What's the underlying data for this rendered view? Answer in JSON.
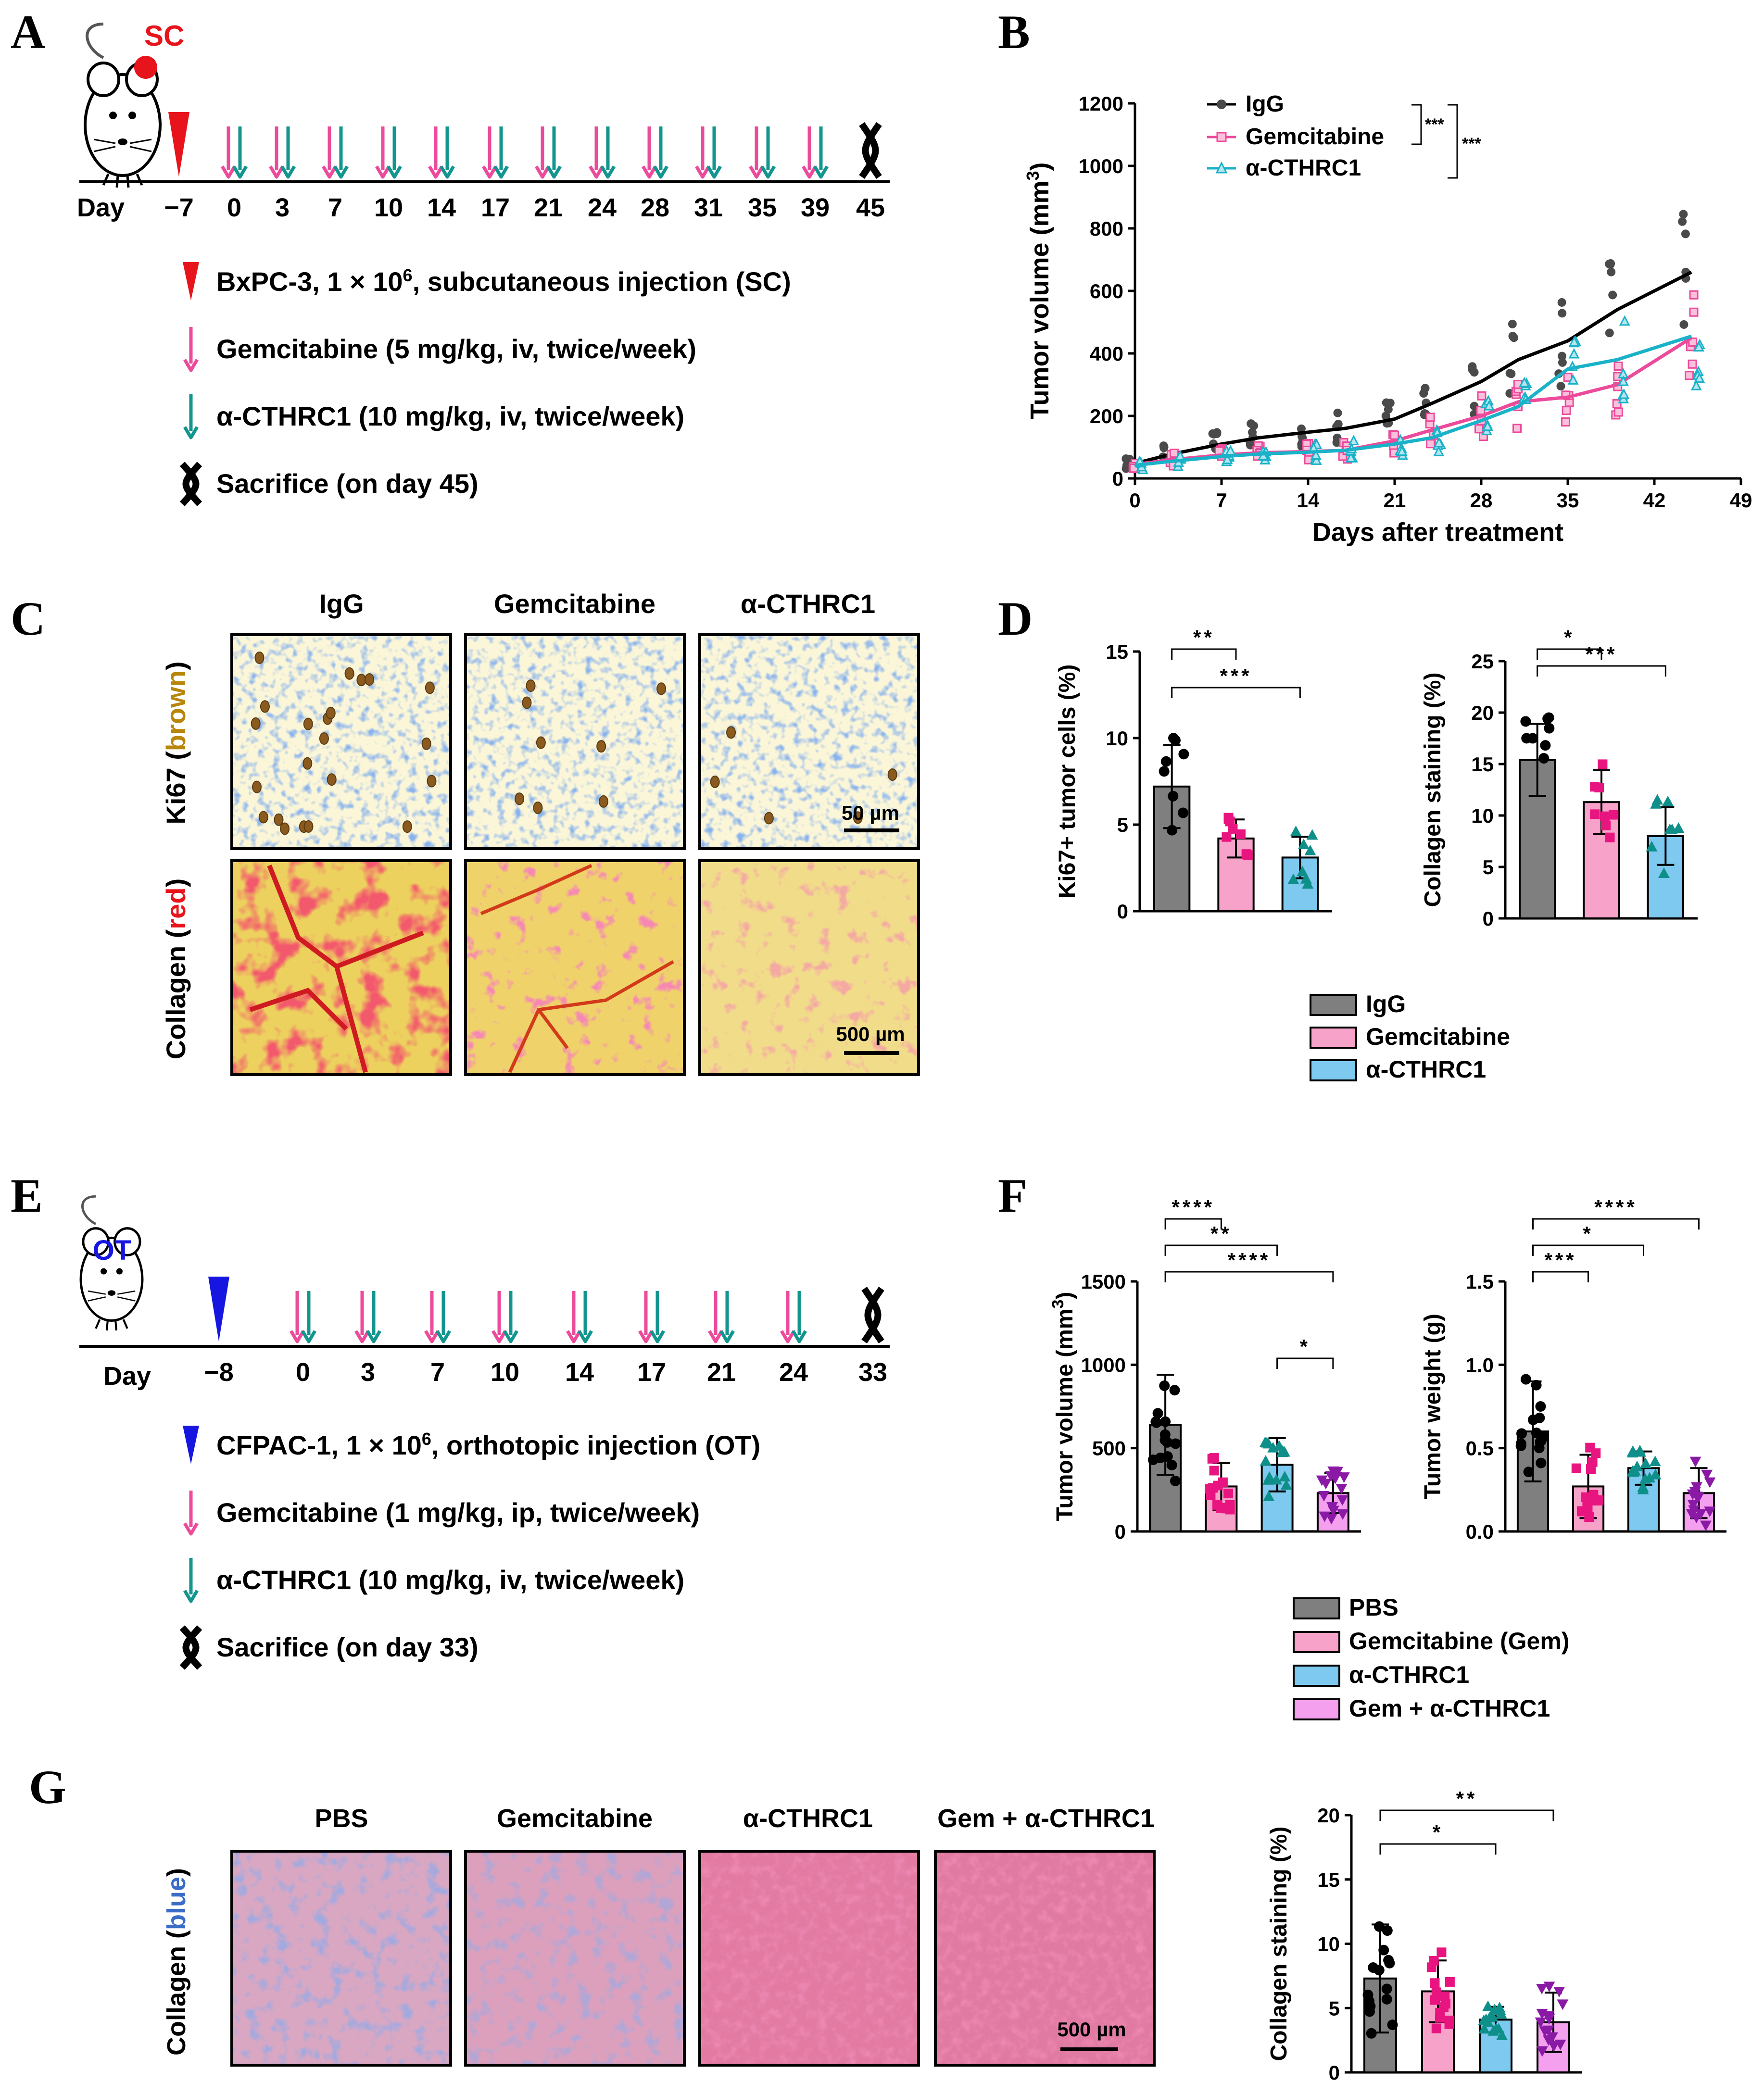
{
  "figure": {
    "panel_labels": [
      "A",
      "B",
      "C",
      "D",
      "E",
      "F",
      "G"
    ]
  },
  "panelA": {
    "mouse_tag": "SC",
    "day_label": "Day",
    "days": [
      "−7",
      "0",
      "3",
      "7",
      "10",
      "14",
      "17",
      "21",
      "24",
      "28",
      "31",
      "35",
      "39",
      "45"
    ],
    "legend": [
      {
        "pre": "BxPC-3, 1 × 10",
        "sup": "6",
        "post": ", subcutaneous injection (SC)"
      },
      {
        "pre": "Gemcitabine (5 mg/kg, iv, twice/week)",
        "sup": "",
        "post": ""
      },
      {
        "pre": "α-CTHRC1 (10 mg/kg, iv, twice/week)",
        "sup": "",
        "post": ""
      },
      {
        "pre": "Sacrifice (on day 45)",
        "sup": "",
        "post": ""
      }
    ],
    "colors": {
      "injection": "#e8141b",
      "gem": "#ec4a9a",
      "cthrc1": "#13958f",
      "sacrifice": "#000000"
    }
  },
  "panelE": {
    "mouse_tag": "OT",
    "day_label": "Day",
    "days": [
      "−8",
      "0",
      "3",
      "7",
      "10",
      "14",
      "17",
      "21",
      "24",
      "33"
    ],
    "legend": [
      {
        "pre": "CFPAC-1, 1 × 10",
        "sup": "6",
        "post": ", orthotopic injection (OT)"
      },
      {
        "pre": "Gemcitabine (1 mg/kg, ip, twice/week)",
        "sup": "",
        "post": ""
      },
      {
        "pre": "α-CTHRC1 (10 mg/kg, iv, twice/week)",
        "sup": "",
        "post": ""
      },
      {
        "pre": "Sacrifice (on day 33)",
        "sup": "",
        "post": ""
      }
    ],
    "colors": {
      "injection": "#1616e0",
      "gem": "#ec4a9a",
      "cthrc1": "#13958f",
      "sacrifice": "#000000"
    }
  },
  "chart_data": [
    {
      "id": "B",
      "type": "line",
      "title": "",
      "xlabel": "Days after treatment",
      "ylabel_pre": "Tumor volume (mm",
      "ylabel_sup": "3",
      "ylabel_post": ")",
      "xlim": [
        0,
        49
      ],
      "ylim": [
        0,
        1200
      ],
      "xticks": [
        0,
        7,
        14,
        21,
        28,
        35,
        42,
        49
      ],
      "yticks": [
        0,
        200,
        400,
        600,
        800,
        1000,
        1200
      ],
      "x": [
        0,
        3,
        7,
        10,
        14,
        17,
        21,
        24,
        28,
        31,
        35,
        39,
        45
      ],
      "series": [
        {
          "name": "IgG",
          "color": "#000000",
          "values": [
            48,
            78,
            110,
            130,
            148,
            160,
            190,
            240,
            310,
            380,
            440,
            540,
            660
          ]
        },
        {
          "name": "Gemcitabine",
          "color": "#ec4a9a",
          "values": [
            45,
            60,
            75,
            82,
            86,
            90,
            120,
            155,
            200,
            245,
            260,
            300,
            450
          ]
        },
        {
          "name": "α-CTHRC1",
          "color": "#1ab2c9",
          "values": [
            42,
            55,
            70,
            78,
            84,
            90,
            110,
            130,
            185,
            230,
            350,
            380,
            455
          ]
        }
      ],
      "significance": [
        "***",
        "***"
      ]
    },
    {
      "id": "D1",
      "type": "bar",
      "ylabel": "Ki67+ tumor cells (%)",
      "ylim": [
        0,
        15
      ],
      "yticks": [
        0,
        5,
        10,
        15
      ],
      "categories": [
        "IgG",
        "Gemcitabine",
        "α-CTHRC1"
      ],
      "values": [
        7.2,
        4.2,
        3.1
      ],
      "errors": [
        2.4,
        1.1,
        1.2
      ],
      "significance": [
        {
          "from": 0,
          "to": 1,
          "label": "**"
        },
        {
          "from": 0,
          "to": 2,
          "label": "***"
        }
      ]
    },
    {
      "id": "D2",
      "type": "bar",
      "ylabel": "Collagen staining (%)",
      "ylim": [
        0,
        25
      ],
      "yticks": [
        0,
        5,
        10,
        15,
        20,
        25
      ],
      "categories": [
        "IgG",
        "Gemcitabine",
        "α-CTHRC1"
      ],
      "values": [
        15.4,
        11.3,
        8.0
      ],
      "errors": [
        3.5,
        3.1,
        2.8
      ],
      "significance": [
        {
          "from": 0,
          "to": 1,
          "label": "*"
        },
        {
          "from": 0,
          "to": 2,
          "label": "***"
        }
      ]
    },
    {
      "id": "F1",
      "type": "bar",
      "ylabel_pre": "Tumor volume (mm",
      "ylabel_sup": "3",
      "ylabel_post": ")",
      "ylim": [
        0,
        1500
      ],
      "yticks": [
        0,
        500,
        1000,
        1500
      ],
      "categories": [
        "PBS",
        "Gemcitabine (Gem)",
        "α-CTHRC1",
        "Gem + α-CTHRC1"
      ],
      "values": [
        640,
        270,
        400,
        230
      ],
      "errors": [
        300,
        140,
        160,
        120
      ],
      "significance": [
        {
          "from": 0,
          "to": 1,
          "label": "****"
        },
        {
          "from": 0,
          "to": 2,
          "label": "**"
        },
        {
          "from": 0,
          "to": 3,
          "label": "****"
        },
        {
          "from": 2,
          "to": 3,
          "label": "*"
        }
      ]
    },
    {
      "id": "F2",
      "type": "bar",
      "ylabel": "Tumor weight (g)",
      "ylim": [
        0,
        1.5
      ],
      "yticks": [
        "0.0",
        "0.5",
        "1.0",
        "1.5"
      ],
      "categories": [
        "PBS",
        "Gemcitabine (Gem)",
        "α-CTHRC1",
        "Gem + α-CTHRC1"
      ],
      "values": [
        0.6,
        0.27,
        0.38,
        0.23
      ],
      "errors": [
        0.3,
        0.19,
        0.1,
        0.15
      ],
      "significance": [
        {
          "from": 0,
          "to": 1,
          "label": "***"
        },
        {
          "from": 0,
          "to": 2,
          "label": "*"
        },
        {
          "from": 0,
          "to": 3,
          "label": "****"
        }
      ]
    },
    {
      "id": "G",
      "type": "bar",
      "ylabel": "Collagen staining (%)",
      "ylim": [
        0,
        20
      ],
      "yticks": [
        0,
        5,
        10,
        15,
        20
      ],
      "categories": [
        "PBS",
        "Gemcitabine",
        "α-CTHRC1",
        "Gem + α-CTHRC1"
      ],
      "values": [
        7.3,
        6.3,
        4.1,
        3.9
      ],
      "errors": [
        4.2,
        2.4,
        1.0,
        2.3
      ],
      "significance": [
        {
          "from": 0,
          "to": 2,
          "label": "*"
        },
        {
          "from": 0,
          "to": 3,
          "label": "**"
        }
      ]
    }
  ],
  "legendB": [
    "IgG",
    "Gemcitabine",
    "α-CTHRC1"
  ],
  "legendD": [
    {
      "name": "IgG",
      "color": "#7f7f7f"
    },
    {
      "name": "Gemcitabine",
      "color": "#f7a2c9"
    },
    {
      "name": "α-CTHRC1",
      "color": "#7dc9ef"
    }
  ],
  "legendF": [
    {
      "name": "PBS",
      "color": "#7f7f7f"
    },
    {
      "name": "Gemcitabine (Gem)",
      "color": "#f7a2c9"
    },
    {
      "name": "α-CTHRC1",
      "color": "#7dc9ef"
    },
    {
      "name": "Gem + α-CTHRC1",
      "color": "#f4a0ef"
    }
  ],
  "panelC": {
    "columns": [
      "IgG",
      "Gemcitabine",
      "α-CTHRC1"
    ],
    "row1_label_pre": "Ki67 (",
    "row1_label_color": "brown",
    "row1_label_post": ")",
    "row2_label_pre": "Collagen (",
    "row2_label_color": "red",
    "row2_label_post": ")",
    "scale1": "50 µm",
    "scale2": "500 µm"
  },
  "panelG": {
    "columns": [
      "PBS",
      "Gemcitabine",
      "α-CTHRC1",
      "Gem + α-CTHRC1"
    ],
    "row_label_pre": "Collagen (",
    "row_label_color": "blue",
    "row_label_post": ")",
    "scale": "500 µm"
  },
  "colors": {
    "dark": "#4a4a4a",
    "gem_point": "#e8147f",
    "cthrc1_point": "#0e8f8a",
    "combo_point": "#8a1aa6",
    "bar_gray": "#7f7f7f",
    "bar_pink": "#f7a2c9",
    "bar_blue": "#7dc9ef",
    "bar_violet": "#f4a0ef"
  }
}
